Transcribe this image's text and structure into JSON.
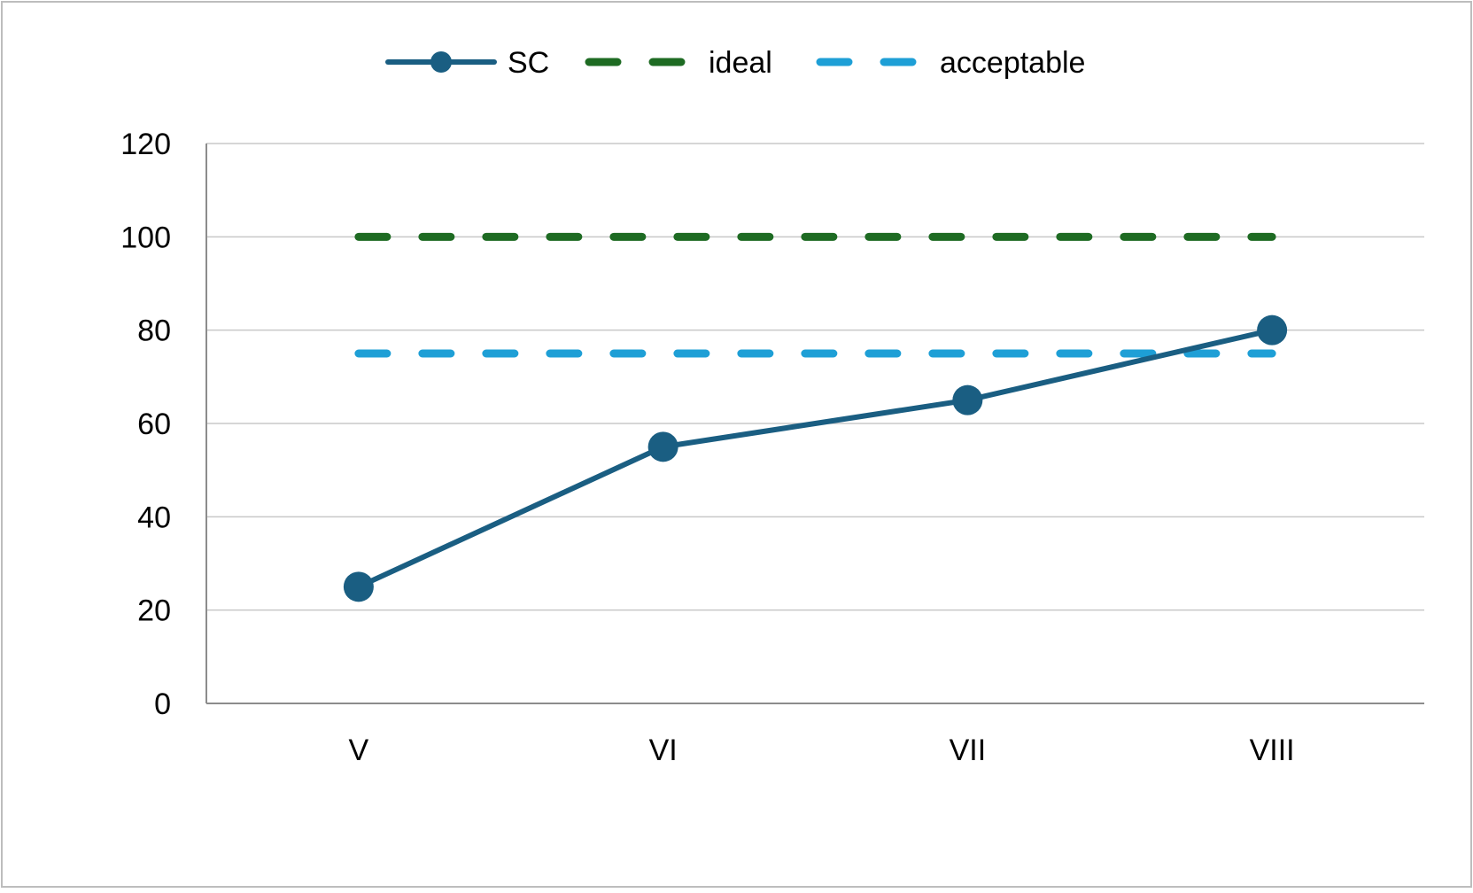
{
  "chart_data": {
    "type": "line",
    "title": "",
    "xlabel": "",
    "ylabel": "",
    "categories": [
      "V",
      "VI",
      "VII",
      "VIII"
    ],
    "ylim": [
      0,
      120
    ],
    "yticks": [
      0,
      20,
      40,
      60,
      80,
      100,
      120
    ],
    "grid": true,
    "legend_position": "top-center",
    "series": [
      {
        "name": "SC",
        "values": [
          25,
          55,
          65,
          80
        ],
        "color": "#1a5e82",
        "style": "solid",
        "markers": true
      },
      {
        "name": "ideal",
        "values": [
          100,
          100,
          100,
          100
        ],
        "color": "#1e6b23",
        "style": "dashed",
        "markers": false
      },
      {
        "name": "acceptable",
        "values": [
          75,
          75,
          75,
          75
        ],
        "color": "#1e9fd6",
        "style": "dashed",
        "markers": false
      }
    ]
  },
  "colors": {
    "gridline": "#c8c8c8",
    "axis": "#8c8c8c",
    "frame": "#bdbdbd"
  }
}
